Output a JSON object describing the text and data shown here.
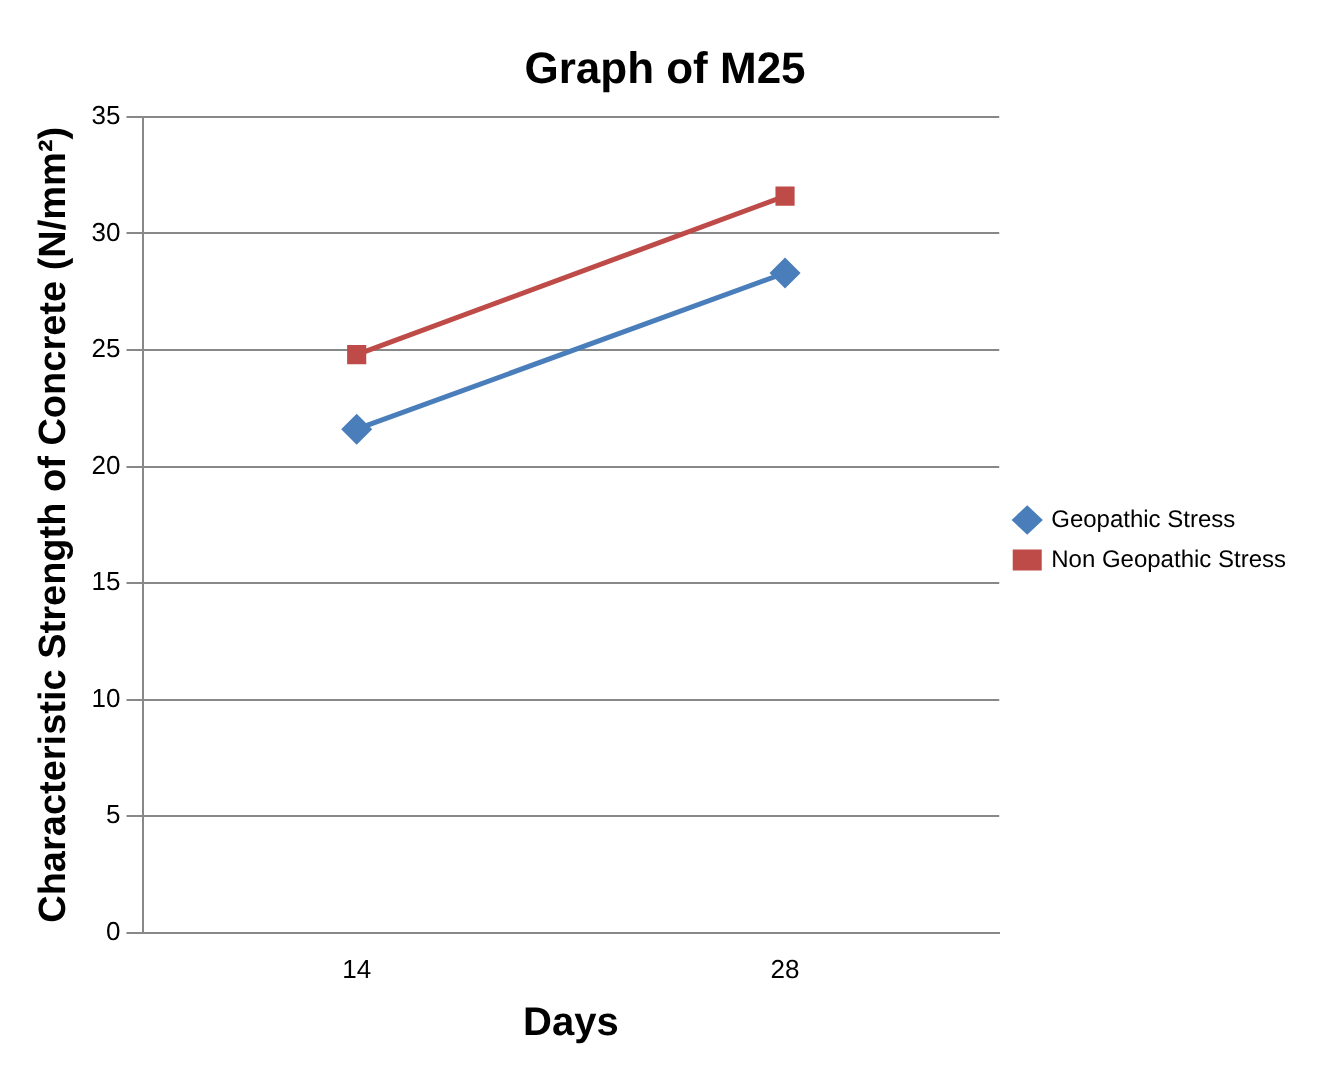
{
  "chart_data": {
    "type": "line",
    "title": "Graph of M25",
    "xlabel": "Days",
    "ylabel": "Characteristic Strength of Concrete (N/mm²)",
    "categories": [
      "14",
      "28"
    ],
    "series": [
      {
        "name": "Geopathic Stress",
        "color": "#4a7ebb",
        "marker": "diamond",
        "values": [
          21.6,
          28.3
        ]
      },
      {
        "name": "Non Geopathic Stress",
        "color": "#be4b48",
        "marker": "square",
        "values": [
          24.8,
          31.6
        ]
      }
    ],
    "ylim": [
      0,
      35
    ],
    "yticks": [
      0,
      5,
      10,
      15,
      20,
      25,
      30,
      35
    ],
    "grid": "y",
    "legend": "right"
  }
}
